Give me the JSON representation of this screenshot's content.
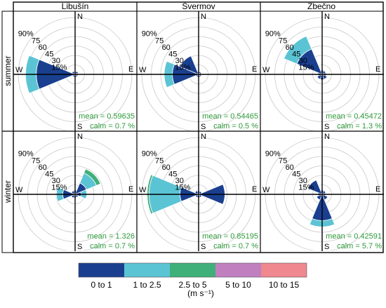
{
  "figure": {
    "columns": [
      "Libušín",
      "Švermov",
      "Zbečno"
    ],
    "rows": [
      "summer",
      "winter"
    ],
    "ring_labels": [
      "15%",
      "30",
      "45",
      "60",
      "75",
      "90%"
    ],
    "compass": {
      "north": "N",
      "east": "E",
      "south": "S",
      "west": "W"
    },
    "stats_labels": {
      "mean": "mean",
      "calm": "calm"
    }
  },
  "legend": {
    "title": "(m s⁻¹)",
    "bins": [
      {
        "label": "0 to 1",
        "color": "#1a3f8f"
      },
      {
        "label": "1 to 2.5",
        "color": "#5bc4d4"
      },
      {
        "label": "2.5 to 5",
        "color": "#3fb07a"
      },
      {
        "label": "5 to 10",
        "color": "#c080c0"
      },
      {
        "label": "10 to 15",
        "color": "#f08890"
      }
    ]
  },
  "chart_data": [
    {
      "type": "polar-bar",
      "site": "Libušín",
      "season": "summer",
      "mean": "0.59635",
      "calm": "0.7 %",
      "directions_deg": [
        0,
        45,
        90,
        135,
        180,
        225,
        270,
        315
      ],
      "series": [
        {
          "name": "0 to 1",
          "values": [
            3,
            4,
            3,
            3,
            3,
            3,
            60,
            4
          ]
        },
        {
          "name": "1 to 2.5",
          "values": [
            0,
            0,
            0,
            0,
            0,
            0,
            17,
            0
          ]
        }
      ]
    },
    {
      "type": "polar-bar",
      "site": "Švermov",
      "season": "summer",
      "mean": "0.54465",
      "calm": "0.5 %",
      "directions_deg": [
        0,
        45,
        90,
        135,
        180,
        225,
        270,
        315
      ],
      "series": [
        {
          "name": "0 to 1",
          "values": [
            3,
            3,
            3,
            3,
            3,
            3,
            40,
            30
          ]
        },
        {
          "name": "1 to 2.5",
          "values": [
            0,
            0,
            0,
            0,
            0,
            0,
            13,
            0
          ]
        }
      ]
    },
    {
      "type": "polar-bar",
      "site": "Zbečno",
      "season": "summer",
      "mean": "0.45472",
      "calm": "1.3 %",
      "directions_deg": [
        0,
        45,
        90,
        135,
        180,
        225,
        270,
        315
      ],
      "series": [
        {
          "name": "0 to 1",
          "values": [
            5,
            5,
            5,
            7,
            7,
            7,
            5,
            42
          ]
        },
        {
          "name": "1 to 2.5",
          "values": [
            0,
            0,
            0,
            0,
            0,
            0,
            0,
            22
          ]
        }
      ]
    },
    {
      "type": "polar-bar",
      "site": "Libušín",
      "season": "winter",
      "mean": "1.326",
      "calm": "0.7 %",
      "directions_deg": [
        0,
        45,
        90,
        135,
        180,
        225,
        270,
        315
      ],
      "series": [
        {
          "name": "0 to 1",
          "values": [
            5,
            18,
            8,
            4,
            4,
            5,
            18,
            5
          ]
        },
        {
          "name": "1 to 2.5",
          "values": [
            0,
            17,
            9,
            0,
            0,
            0,
            10,
            0
          ]
        },
        {
          "name": "2.5 to 5",
          "values": [
            0,
            7,
            1,
            0,
            0,
            0,
            0,
            0
          ]
        }
      ]
    },
    {
      "type": "polar-bar",
      "site": "Švermov",
      "season": "winter",
      "mean": "0.85195",
      "calm": "0.7 %",
      "directions_deg": [
        0,
        45,
        90,
        135,
        180,
        225,
        270,
        315
      ],
      "series": [
        {
          "name": "0 to 1",
          "values": [
            4,
            4,
            40,
            4,
            4,
            4,
            28,
            5
          ]
        },
        {
          "name": "1 to 2.5",
          "values": [
            0,
            0,
            0,
            0,
            0,
            0,
            49,
            0
          ]
        },
        {
          "name": "2.5 to 5",
          "values": [
            0,
            0,
            0,
            0,
            0,
            0,
            3,
            0
          ]
        }
      ]
    },
    {
      "type": "polar-bar",
      "site": "Zbečno",
      "season": "winter",
      "mean": "0.42591",
      "calm": "5.7 %",
      "directions_deg": [
        0,
        45,
        90,
        135,
        180,
        225,
        270,
        315
      ],
      "series": [
        {
          "name": "0 to 1",
          "values": [
            5,
            5,
            4,
            8,
            40,
            8,
            5,
            23
          ]
        },
        {
          "name": "1 to 2.5",
          "values": [
            0,
            0,
            0,
            0,
            10,
            0,
            0,
            0
          ]
        }
      ]
    }
  ]
}
